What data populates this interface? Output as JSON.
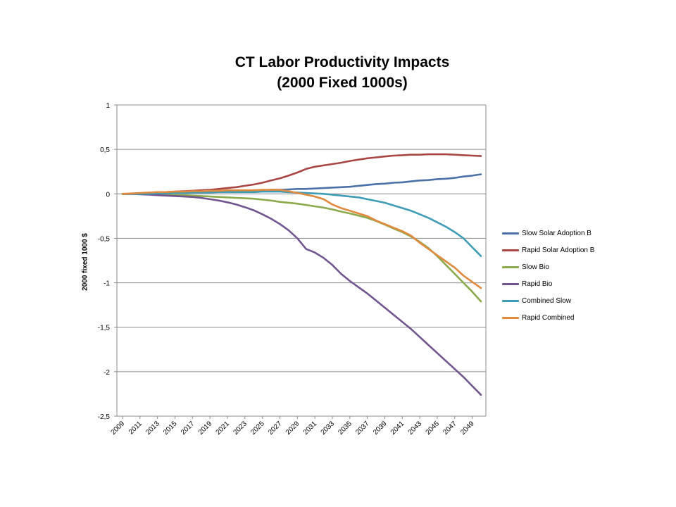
{
  "chart_data": {
    "type": "line",
    "title": [
      "CT Labor Productivity Impacts",
      "(2000 Fixed 1000s)"
    ],
    "ylabel": "2000 fixed 1000 $",
    "xlabel": "",
    "ylim": [
      -2.5,
      1
    ],
    "yticks": [
      1,
      0.5,
      0,
      -0.5,
      -1,
      -1.5,
      -2,
      -2.5
    ],
    "ytick_labels": [
      "1",
      "0,5",
      "0",
      "-0,5",
      "-1",
      "-1,5",
      "-2",
      "-2,5"
    ],
    "x": [
      2009,
      2010,
      2011,
      2012,
      2013,
      2014,
      2015,
      2016,
      2017,
      2018,
      2019,
      2020,
      2021,
      2022,
      2023,
      2024,
      2025,
      2026,
      2027,
      2028,
      2029,
      2030,
      2031,
      2032,
      2033,
      2034,
      2035,
      2036,
      2037,
      2038,
      2039,
      2040,
      2041,
      2042,
      2043,
      2044,
      2045,
      2046,
      2047,
      2048,
      2049,
      2050
    ],
    "xtick_labels": [
      "2009",
      "2011",
      "2013",
      "2015",
      "2017",
      "2019",
      "2021",
      "2023",
      "2025",
      "2027",
      "2029",
      "2031",
      "2033",
      "2035",
      "2037",
      "2039",
      "2041",
      "2043",
      "2045",
      "2047",
      "2049"
    ],
    "grid": true,
    "legend_position": "right",
    "series": [
      {
        "name": "Slow Solar Adoption B",
        "color": "#4a72a8",
        "values": [
          0,
          0,
          0.005,
          0.01,
          0.01,
          0.015,
          0.015,
          0.02,
          0.02,
          0.025,
          0.025,
          0.03,
          0.03,
          0.035,
          0.035,
          0.04,
          0.04,
          0.045,
          0.045,
          0.05,
          0.055,
          0.055,
          0.06,
          0.065,
          0.07,
          0.075,
          0.08,
          0.09,
          0.1,
          0.11,
          0.115,
          0.125,
          0.13,
          0.14,
          0.15,
          0.155,
          0.165,
          0.17,
          0.18,
          0.195,
          0.205,
          0.22
        ]
      },
      {
        "name": "Rapid Solar Adoption B",
        "color": "#a94543",
        "values": [
          0,
          0,
          0.005,
          0.01,
          0.015,
          0.02,
          0.025,
          0.03,
          0.035,
          0.04,
          0.045,
          0.055,
          0.065,
          0.075,
          0.09,
          0.105,
          0.125,
          0.15,
          0.175,
          0.205,
          0.24,
          0.28,
          0.305,
          0.32,
          0.335,
          0.35,
          0.37,
          0.385,
          0.4,
          0.41,
          0.42,
          0.43,
          0.435,
          0.44,
          0.44,
          0.445,
          0.445,
          0.445,
          0.44,
          0.435,
          0.43,
          0.425
        ]
      },
      {
        "name": "Slow Bio",
        "color": "#8aaa4b",
        "values": [
          0,
          0,
          0,
          -0.005,
          -0.01,
          -0.01,
          -0.015,
          -0.015,
          -0.02,
          -0.025,
          -0.03,
          -0.035,
          -0.04,
          -0.045,
          -0.05,
          -0.055,
          -0.065,
          -0.075,
          -0.09,
          -0.1,
          -0.11,
          -0.125,
          -0.14,
          -0.155,
          -0.175,
          -0.2,
          -0.22,
          -0.245,
          -0.27,
          -0.305,
          -0.345,
          -0.39,
          -0.43,
          -0.48,
          -0.54,
          -0.61,
          -0.7,
          -0.8,
          -0.9,
          -1.0,
          -1.1,
          -1.21
        ]
      },
      {
        "name": "Rapid Bio",
        "color": "#725590",
        "values": [
          0,
          0,
          -0.005,
          -0.01,
          -0.015,
          -0.02,
          -0.025,
          -0.03,
          -0.035,
          -0.045,
          -0.06,
          -0.075,
          -0.095,
          -0.12,
          -0.15,
          -0.185,
          -0.23,
          -0.28,
          -0.34,
          -0.41,
          -0.5,
          -0.62,
          -0.66,
          -0.72,
          -0.8,
          -0.9,
          -0.98,
          -1.05,
          -1.12,
          -1.2,
          -1.28,
          -1.36,
          -1.44,
          -1.52,
          -1.61,
          -1.7,
          -1.79,
          -1.88,
          -1.97,
          -2.06,
          -2.16,
          -2.26
        ]
      },
      {
        "name": "Combined Slow",
        "color": "#3f9cb7",
        "values": [
          0,
          0,
          0,
          0,
          0.005,
          0.005,
          0.01,
          0.01,
          0.015,
          0.015,
          0.015,
          0.02,
          0.02,
          0.02,
          0.02,
          0.02,
          0.025,
          0.025,
          0.025,
          0.02,
          0.015,
          0.01,
          0.005,
          0,
          -0.01,
          -0.02,
          -0.03,
          -0.04,
          -0.06,
          -0.08,
          -0.1,
          -0.13,
          -0.16,
          -0.19,
          -0.23,
          -0.27,
          -0.32,
          -0.37,
          -0.43,
          -0.5,
          -0.6,
          -0.7
        ]
      },
      {
        "name": "Rapid Combined",
        "color": "#e08a3e",
        "values": [
          0,
          0.005,
          0.01,
          0.015,
          0.02,
          0.02,
          0.025,
          0.025,
          0.03,
          0.03,
          0.035,
          0.035,
          0.04,
          0.04,
          0.04,
          0.04,
          0.045,
          0.045,
          0.045,
          0.03,
          0.01,
          -0.01,
          -0.03,
          -0.06,
          -0.12,
          -0.16,
          -0.19,
          -0.22,
          -0.25,
          -0.3,
          -0.34,
          -0.38,
          -0.42,
          -0.47,
          -0.55,
          -0.62,
          -0.69,
          -0.76,
          -0.83,
          -0.92,
          -0.99,
          -1.06
        ]
      }
    ]
  }
}
